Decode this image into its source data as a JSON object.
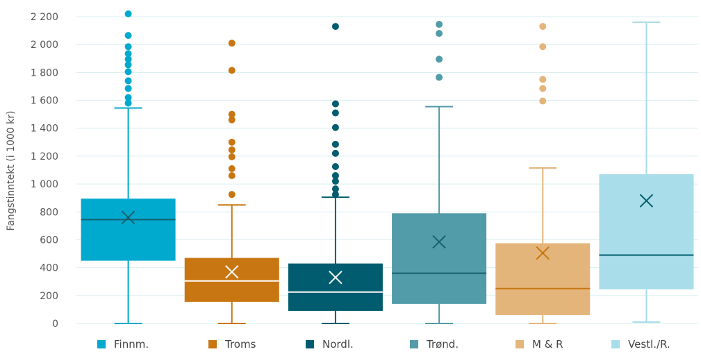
{
  "chart_data": {
    "type": "box",
    "title": "",
    "xlabel": "",
    "ylabel": "Fangstinntekt (i 1000 kr)",
    "ylim": [
      0,
      2200
    ],
    "yticks": [
      0,
      200,
      400,
      600,
      800,
      1000,
      1200,
      1400,
      1600,
      1800,
      2000,
      2200
    ],
    "ytick_labels": [
      "0",
      "200",
      "400",
      "600",
      "800",
      "1 000",
      "1 200",
      "1 400",
      "1 600",
      "1 800",
      "2 000",
      "2 200"
    ],
    "grid": true,
    "legend_position": "bottom",
    "categories": [
      "Finnm.",
      "Troms",
      "Nordl.",
      "Trønd.",
      "M & R",
      "Vestl./R."
    ],
    "series": [
      {
        "name": "Finnm.",
        "color": "#00a9ce",
        "median_color": "#1a5f6e",
        "mean_color": "#1a5f6e",
        "min": 0,
        "q1": 450,
        "median": 745,
        "q3": 895,
        "max": 1545,
        "mean": 760,
        "outliers": [
          1580,
          1620,
          1685,
          1740,
          1805,
          1855,
          1895,
          1935,
          1985,
          2065,
          2220
        ]
      },
      {
        "name": "Troms",
        "color": "#c87612",
        "median_color": "#ffffff",
        "mean_color": "#ffffff",
        "min": 0,
        "q1": 155,
        "median": 305,
        "q3": 470,
        "max": 850,
        "mean": 370,
        "outliers": [
          925,
          1060,
          1110,
          1195,
          1245,
          1300,
          1460,
          1500,
          1815,
          2010
        ]
      },
      {
        "name": "Nordl.",
        "color": "#005c6e",
        "median_color": "#ffffff",
        "mean_color": "#ffffff",
        "min": 0,
        "q1": 90,
        "median": 225,
        "q3": 430,
        "max": 905,
        "mean": 330,
        "outliers": [
          925,
          965,
          1020,
          1060,
          1125,
          1220,
          1285,
          1405,
          1510,
          1575,
          2130
        ]
      },
      {
        "name": "Trønd.",
        "color": "#529ba9",
        "median_color": "#1a5f6e",
        "mean_color": "#1a5f6e",
        "min": 0,
        "q1": 140,
        "median": 360,
        "q3": 790,
        "max": 1555,
        "mean": 585,
        "outliers": [
          1765,
          1895,
          2080,
          2145
        ]
      },
      {
        "name": "M & R",
        "color": "#e4b57a",
        "median_color": "#c87612",
        "mean_color": "#c87612",
        "min": 0,
        "q1": 60,
        "median": 250,
        "q3": 575,
        "max": 1115,
        "mean": 505,
        "outliers": [
          1595,
          1685,
          1750,
          1985,
          2130
        ]
      },
      {
        "name": "Vestl./R.",
        "color": "#a8dde9",
        "median_color": "#005c6e",
        "mean_color": "#005c6e",
        "min": 10,
        "q1": 245,
        "median": 490,
        "q3": 1070,
        "max": 2160,
        "mean": 880,
        "outliers": []
      }
    ]
  }
}
